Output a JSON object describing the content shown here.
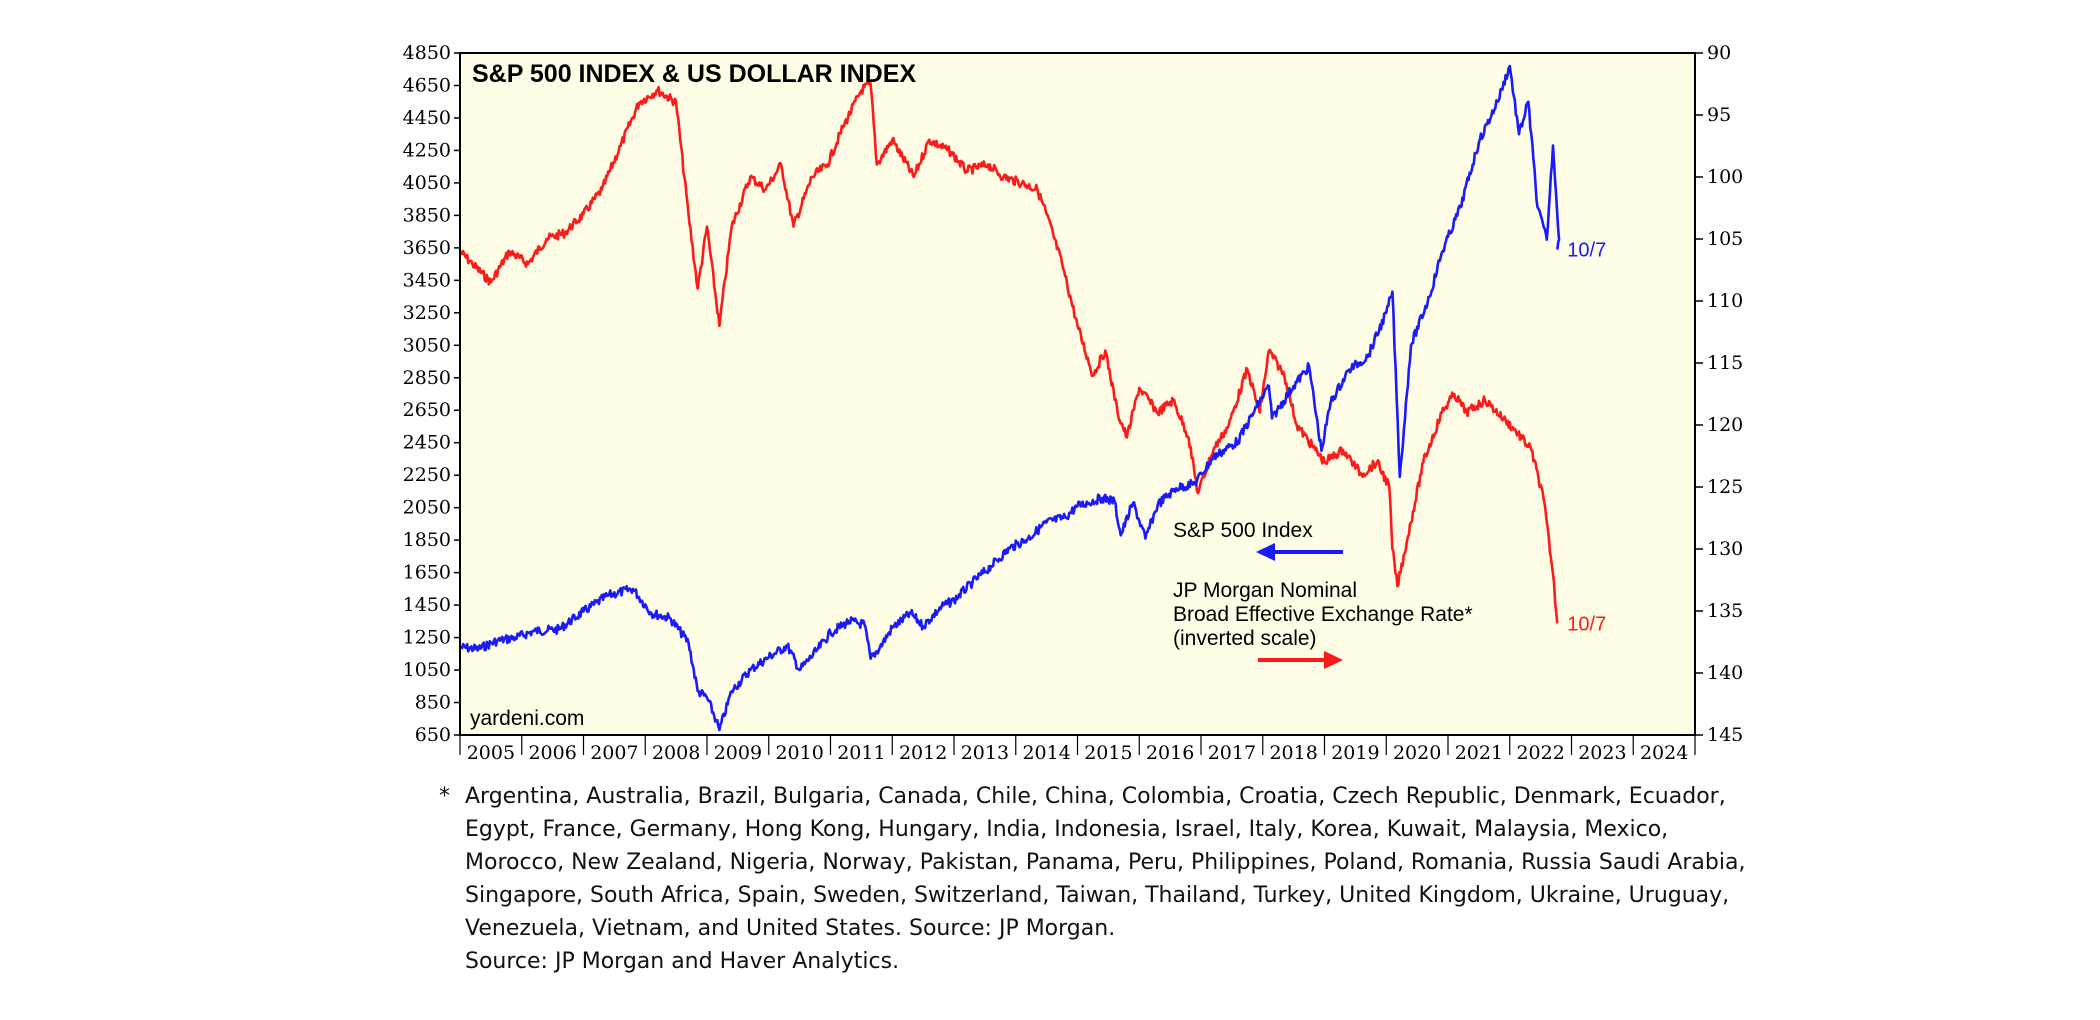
{
  "colors": {
    "spx": "#1a1aff",
    "fx": "#ff1a1a",
    "plot_bg": "#fffde6"
  },
  "chart_data": {
    "type": "line",
    "title": "S&P 500 INDEX & US DOLLAR INDEX",
    "watermark": "yardeni.com",
    "x_labels": [
      "2005",
      "2006",
      "2007",
      "2008",
      "2009",
      "2010",
      "2011",
      "2012",
      "2013",
      "2014",
      "2015",
      "2016",
      "2017",
      "2018",
      "2019",
      "2020",
      "2021",
      "2022",
      "2023",
      "2024"
    ],
    "xlim": [
      2005,
      2025
    ],
    "left_axis": {
      "ticks": [
        650,
        850,
        1050,
        1250,
        1450,
        1650,
        1850,
        2050,
        2250,
        2450,
        2650,
        2850,
        3050,
        3250,
        3450,
        3650,
        3850,
        4050,
        4250,
        4450,
        4650,
        4850
      ],
      "ylim": [
        650,
        4850
      ]
    },
    "right_axis": {
      "ticks": [
        90,
        95,
        100,
        105,
        110,
        115,
        120,
        125,
        130,
        135,
        140,
        145
      ],
      "ylim": [
        90,
        145
      ],
      "inverted": true
    },
    "series": [
      {
        "name": "S&P 500 Index",
        "axis": "left",
        "end_label": "10/7",
        "points": [
          [
            2005.0,
            1190
          ],
          [
            2005.3,
            1180
          ],
          [
            2005.6,
            1230
          ],
          [
            2005.9,
            1250
          ],
          [
            2006.2,
            1290
          ],
          [
            2006.6,
            1300
          ],
          [
            2007.0,
            1410
          ],
          [
            2007.4,
            1510
          ],
          [
            2007.8,
            1550
          ],
          [
            2008.1,
            1400
          ],
          [
            2008.4,
            1370
          ],
          [
            2008.7,
            1220
          ],
          [
            2008.85,
            920
          ],
          [
            2009.0,
            880
          ],
          [
            2009.15,
            740
          ],
          [
            2009.2,
            680
          ],
          [
            2009.4,
            920
          ],
          [
            2009.7,
            1050
          ],
          [
            2010.0,
            1130
          ],
          [
            2010.3,
            1200
          ],
          [
            2010.5,
            1050
          ],
          [
            2010.8,
            1180
          ],
          [
            2011.0,
            1280
          ],
          [
            2011.3,
            1350
          ],
          [
            2011.55,
            1330
          ],
          [
            2011.65,
            1120
          ],
          [
            2011.8,
            1190
          ],
          [
            2012.0,
            1310
          ],
          [
            2012.3,
            1400
          ],
          [
            2012.5,
            1320
          ],
          [
            2012.8,
            1440
          ],
          [
            2013.0,
            1480
          ],
          [
            2013.3,
            1590
          ],
          [
            2013.6,
            1690
          ],
          [
            2013.9,
            1800
          ],
          [
            2014.2,
            1860
          ],
          [
            2014.5,
            1960
          ],
          [
            2014.8,
            1990
          ],
          [
            2015.0,
            2060
          ],
          [
            2015.4,
            2110
          ],
          [
            2015.6,
            2090
          ],
          [
            2015.7,
            1880
          ],
          [
            2015.9,
            2080
          ],
          [
            2016.1,
            1860
          ],
          [
            2016.3,
            2070
          ],
          [
            2016.6,
            2170
          ],
          [
            2016.9,
            2200
          ],
          [
            2017.2,
            2360
          ],
          [
            2017.6,
            2460
          ],
          [
            2017.9,
            2670
          ],
          [
            2018.1,
            2800
          ],
          [
            2018.15,
            2600
          ],
          [
            2018.5,
            2800
          ],
          [
            2018.75,
            2920
          ],
          [
            2018.95,
            2400
          ],
          [
            2019.1,
            2700
          ],
          [
            2019.4,
            2900
          ],
          [
            2019.7,
            2980
          ],
          [
            2020.0,
            3250
          ],
          [
            2020.1,
            3380
          ],
          [
            2020.22,
            2240
          ],
          [
            2020.4,
            3050
          ],
          [
            2020.7,
            3350
          ],
          [
            2020.9,
            3620
          ],
          [
            2021.2,
            3900
          ],
          [
            2021.5,
            4300
          ],
          [
            2021.8,
            4550
          ],
          [
            2022.0,
            4770
          ],
          [
            2022.15,
            4350
          ],
          [
            2022.3,
            4550
          ],
          [
            2022.45,
            3900
          ],
          [
            2022.6,
            3700
          ],
          [
            2022.7,
            4280
          ],
          [
            2022.8,
            3700
          ],
          [
            2022.77,
            3640
          ]
        ]
      },
      {
        "name": "JP Morgan Nominal Broad Effective Exchange Rate*",
        "axis": "right",
        "inverted": true,
        "end_label": "10/7",
        "points": [
          [
            2005.0,
            106
          ],
          [
            2005.2,
            107
          ],
          [
            2005.5,
            108.5
          ],
          [
            2005.8,
            106
          ],
          [
            2006.1,
            107
          ],
          [
            2006.4,
            105
          ],
          [
            2006.7,
            104.5
          ],
          [
            2007.0,
            103
          ],
          [
            2007.3,
            101
          ],
          [
            2007.6,
            97.5
          ],
          [
            2007.9,
            94
          ],
          [
            2008.2,
            93
          ],
          [
            2008.5,
            94
          ],
          [
            2008.7,
            103
          ],
          [
            2008.85,
            109
          ],
          [
            2009.0,
            104
          ],
          [
            2009.2,
            112
          ],
          [
            2009.4,
            104
          ],
          [
            2009.7,
            100
          ],
          [
            2009.95,
            101
          ],
          [
            2010.2,
            99
          ],
          [
            2010.4,
            104
          ],
          [
            2010.7,
            100
          ],
          [
            2010.95,
            99
          ],
          [
            2011.2,
            96
          ],
          [
            2011.5,
            93
          ],
          [
            2011.65,
            92.5
          ],
          [
            2011.75,
            99
          ],
          [
            2012.0,
            97
          ],
          [
            2012.35,
            100
          ],
          [
            2012.6,
            97
          ],
          [
            2012.95,
            98
          ],
          [
            2013.2,
            99.5
          ],
          [
            2013.55,
            99
          ],
          [
            2013.8,
            100
          ],
          [
            2014.1,
            100.5
          ],
          [
            2014.35,
            101
          ],
          [
            2014.5,
            103
          ],
          [
            2014.75,
            107
          ],
          [
            2015.0,
            112
          ],
          [
            2015.25,
            116
          ],
          [
            2015.45,
            114
          ],
          [
            2015.65,
            119
          ],
          [
            2015.8,
            121
          ],
          [
            2016.0,
            117
          ],
          [
            2016.3,
            119
          ],
          [
            2016.55,
            118
          ],
          [
            2016.8,
            121
          ],
          [
            2016.95,
            125.5
          ],
          [
            2017.2,
            122
          ],
          [
            2017.45,
            120
          ],
          [
            2017.75,
            115.5
          ],
          [
            2017.95,
            119
          ],
          [
            2018.1,
            114
          ],
          [
            2018.35,
            116
          ],
          [
            2018.55,
            120
          ],
          [
            2018.85,
            122
          ],
          [
            2019.0,
            123
          ],
          [
            2019.3,
            122
          ],
          [
            2019.6,
            124
          ],
          [
            2019.85,
            123
          ],
          [
            2020.05,
            125
          ],
          [
            2020.1,
            130
          ],
          [
            2020.18,
            133
          ],
          [
            2020.35,
            129
          ],
          [
            2020.6,
            123
          ],
          [
            2020.9,
            119
          ],
          [
            2021.1,
            117.5
          ],
          [
            2021.3,
            119
          ],
          [
            2021.6,
            118
          ],
          [
            2021.9,
            119.5
          ],
          [
            2022.1,
            120.5
          ],
          [
            2022.35,
            122
          ],
          [
            2022.55,
            126
          ],
          [
            2022.7,
            132
          ],
          [
            2022.77,
            136
          ]
        ]
      }
    ],
    "annotations": {
      "spx_label": "S&P 500 Index",
      "fx_line1": "JP Morgan Nominal",
      "fx_line2": "Broad Effective Exchange Rate*",
      "fx_line3": "(inverted scale)"
    }
  },
  "footnote": {
    "star": "*",
    "text": "Argentina, Australia, Brazil, Bulgaria, Canada, Chile, China, Colombia, Croatia, Czech Republic, Denmark, Ecuador, Egypt, France, Germany, Hong Kong, Hungary, India, Indonesia, Israel, Italy, Korea, Kuwait, Malaysia, Mexico, Morocco, New Zealand, Nigeria, Norway, Pakistan, Panama, Peru, Philippines, Poland, Romania, Russia Saudi Arabia, Singapore, South Africa, Spain, Sweden, Switzerland, Taiwan, Thailand, Turkey, United Kingdom, Ukraine, Uruguay, Venezuela, Vietnam, and United States. Source: JP Morgan.",
    "source": "Source: JP Morgan and Haver Analytics."
  }
}
